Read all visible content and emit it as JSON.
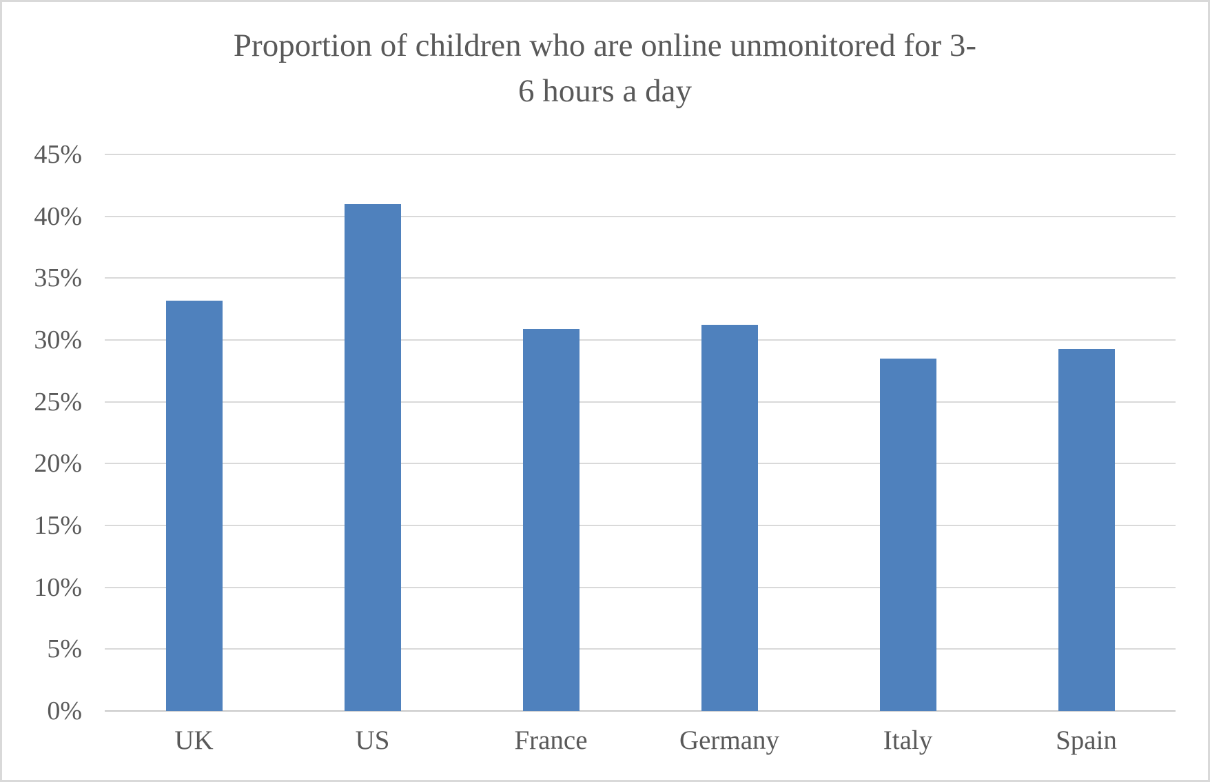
{
  "chart_data": {
    "type": "bar",
    "title": "Proportion of children who are online unmonitored for 3-6 hours a day",
    "title_lines": [
      "Proportion of children who are online unmonitored for 3-",
      "6 hours a day"
    ],
    "categories": [
      "UK",
      "US",
      "France",
      "Germany",
      "Italy",
      "Spain"
    ],
    "values": [
      33.2,
      41,
      30.9,
      31.2,
      28.5,
      29.3
    ],
    "unit": "%",
    "xlabel": "",
    "ylabel": "",
    "ylim": [
      0,
      45
    ],
    "y_tick_step": 5,
    "y_ticks": [
      {
        "label": "0%",
        "value": 0
      },
      {
        "label": "5%",
        "value": 5
      },
      {
        "label": "10%",
        "value": 10
      },
      {
        "label": "15%",
        "value": 15
      },
      {
        "label": "20%",
        "value": 20
      },
      {
        "label": "25%",
        "value": 25
      },
      {
        "label": "30%",
        "value": 30
      },
      {
        "label": "35%",
        "value": 35
      },
      {
        "label": "40%",
        "value": 40
      },
      {
        "label": "45%",
        "value": 45
      }
    ],
    "grid": true,
    "legend": false,
    "colors": {
      "bar": "#4f81bd",
      "gridline": "#d9d9d9",
      "axis_line": "#c9c9c9",
      "text": "#595959",
      "border": "#d9d9d9",
      "background": "#ffffff"
    }
  }
}
